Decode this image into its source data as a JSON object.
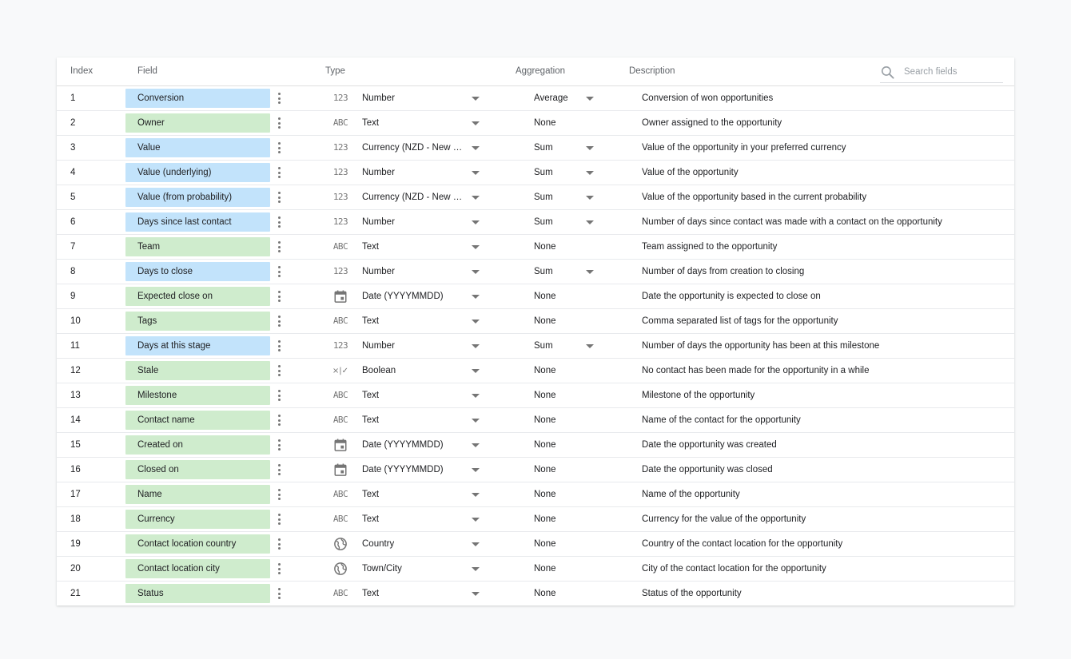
{
  "header": {
    "index": "Index",
    "field": "Field",
    "type": "Type",
    "aggregation": "Aggregation",
    "description": "Description",
    "search_placeholder": "Search fields"
  },
  "rows": [
    {
      "index": "1",
      "field": "Conversion",
      "kind": "metric",
      "type_icon": "123",
      "type": "Number",
      "aggregation": "Average",
      "agg_dropdown": true,
      "description": "Conversion of won opportunities"
    },
    {
      "index": "2",
      "field": "Owner",
      "kind": "dimension",
      "type_icon": "ABC",
      "type": "Text",
      "aggregation": "None",
      "agg_dropdown": false,
      "description": "Owner assigned to the opportunity"
    },
    {
      "index": "3",
      "field": "Value",
      "kind": "metric",
      "type_icon": "123",
      "type": "Currency (NZD - New Zealand Dollar)",
      "aggregation": "Sum",
      "agg_dropdown": true,
      "description": "Value of the opportunity in your preferred currency"
    },
    {
      "index": "4",
      "field": "Value (underlying)",
      "kind": "metric",
      "type_icon": "123",
      "type": "Number",
      "aggregation": "Sum",
      "agg_dropdown": true,
      "description": "Value of the opportunity"
    },
    {
      "index": "5",
      "field": "Value (from probability)",
      "kind": "metric",
      "type_icon": "123",
      "type": "Currency (NZD - New Zealand Dollar)",
      "aggregation": "Sum",
      "agg_dropdown": true,
      "description": "Value of the opportunity based in the current probability"
    },
    {
      "index": "6",
      "field": "Days since last contact",
      "kind": "metric",
      "type_icon": "123",
      "type": "Number",
      "aggregation": "Sum",
      "agg_dropdown": true,
      "description": "Number of days since contact was made with a contact on the opportunity"
    },
    {
      "index": "7",
      "field": "Team",
      "kind": "dimension",
      "type_icon": "ABC",
      "type": "Text",
      "aggregation": "None",
      "agg_dropdown": false,
      "description": "Team assigned to the opportunity"
    },
    {
      "index": "8",
      "field": "Days to close",
      "kind": "metric",
      "type_icon": "123",
      "type": "Number",
      "aggregation": "Sum",
      "agg_dropdown": true,
      "description": "Number of days from creation to closing"
    },
    {
      "index": "9",
      "field": "Expected close on",
      "kind": "dimension",
      "type_icon": "calendar",
      "type": "Date (YYYYMMDD)",
      "aggregation": "None",
      "agg_dropdown": false,
      "description": "Date the opportunity is expected to close on"
    },
    {
      "index": "10",
      "field": "Tags",
      "kind": "dimension",
      "type_icon": "ABC",
      "type": "Text",
      "aggregation": "None",
      "agg_dropdown": false,
      "description": "Comma separated list of tags for the opportunity"
    },
    {
      "index": "11",
      "field": "Days at this stage",
      "kind": "metric",
      "type_icon": "123",
      "type": "Number",
      "aggregation": "Sum",
      "agg_dropdown": true,
      "description": "Number of days the opportunity has been at this milestone"
    },
    {
      "index": "12",
      "field": "Stale",
      "kind": "dimension",
      "type_icon": "boolean",
      "type": "Boolean",
      "aggregation": "None",
      "agg_dropdown": false,
      "description": "No contact has been made for the opportunity in a while"
    },
    {
      "index": "13",
      "field": "Milestone",
      "kind": "dimension",
      "type_icon": "ABC",
      "type": "Text",
      "aggregation": "None",
      "agg_dropdown": false,
      "description": "Milestone of the opportunity"
    },
    {
      "index": "14",
      "field": "Contact name",
      "kind": "dimension",
      "type_icon": "ABC",
      "type": "Text",
      "aggregation": "None",
      "agg_dropdown": false,
      "description": "Name of the contact for the opportunity"
    },
    {
      "index": "15",
      "field": "Created on",
      "kind": "dimension",
      "type_icon": "calendar",
      "type": "Date (YYYYMMDD)",
      "aggregation": "None",
      "agg_dropdown": false,
      "description": "Date the opportunity was created"
    },
    {
      "index": "16",
      "field": "Closed on",
      "kind": "dimension",
      "type_icon": "calendar",
      "type": "Date (YYYYMMDD)",
      "aggregation": "None",
      "agg_dropdown": false,
      "description": "Date the opportunity was closed"
    },
    {
      "index": "17",
      "field": "Name",
      "kind": "dimension",
      "type_icon": "ABC",
      "type": "Text",
      "aggregation": "None",
      "agg_dropdown": false,
      "description": "Name of the opportunity"
    },
    {
      "index": "18",
      "field": "Currency",
      "kind": "dimension",
      "type_icon": "ABC",
      "type": "Text",
      "aggregation": "None",
      "agg_dropdown": false,
      "description": "Currency for the value of the opportunity"
    },
    {
      "index": "19",
      "field": "Contact location country",
      "kind": "dimension",
      "type_icon": "globe",
      "type": "Country",
      "aggregation": "None",
      "agg_dropdown": false,
      "description": "Country of the contact location for the opportunity"
    },
    {
      "index": "20",
      "field": "Contact location city",
      "kind": "dimension",
      "type_icon": "globe",
      "type": "Town/City",
      "aggregation": "None",
      "agg_dropdown": false,
      "description": "City of the contact location for the opportunity"
    },
    {
      "index": "21",
      "field": "Status",
      "kind": "dimension",
      "type_icon": "ABC",
      "type": "Text",
      "aggregation": "None",
      "agg_dropdown": false,
      "description": "Status of the opportunity"
    }
  ]
}
